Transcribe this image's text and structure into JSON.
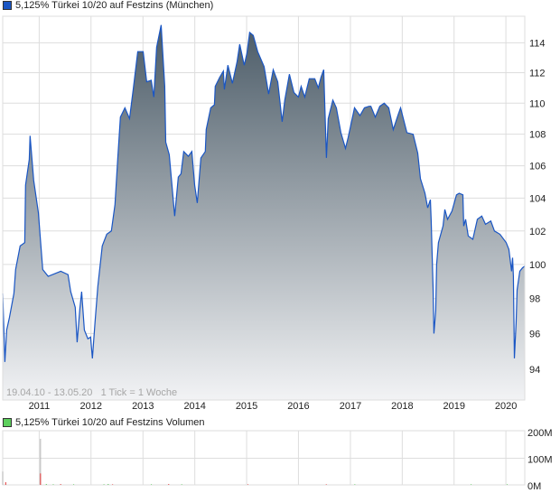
{
  "legend": {
    "price_label": "5,125% Türkei 10/20 auf Festzins (München)",
    "price_color": "#1a56c4",
    "volume_label": "5,125% Türkei 10/20 auf Festzins Volumen",
    "volume_color": "#5ccf5c"
  },
  "info_text": "19.04.10 - 13.05.20   1 Tick = 1 Woche",
  "chart_data": [
    {
      "type": "area",
      "name": "5,125% Türkei 10/20 auf Festzins (München)",
      "x_range": [
        "2010-04-19",
        "2020-05-13"
      ],
      "x_ticks": [
        "2011",
        "2012",
        "2013",
        "2014",
        "2015",
        "2016",
        "2017",
        "2018",
        "2019",
        "2020"
      ],
      "y_scale": "log",
      "ylim": [
        92.3,
        115.8
      ],
      "y_ticks": [
        94,
        96,
        98,
        100,
        102,
        104,
        106,
        108,
        110,
        112,
        114
      ],
      "grid": true,
      "legend": "top-left",
      "line_color": "#1a56c4",
      "fill_top": "#4b5b67",
      "fill_bottom": "#f2f3f5",
      "points": [
        [
          "2010-04-19",
          98.3
        ],
        [
          "2010-05-04",
          94.4
        ],
        [
          "2010-05-17",
          96.2
        ],
        [
          "2010-06-05",
          96.9
        ],
        [
          "2010-07-07",
          98.3
        ],
        [
          "2010-07-19",
          99.7
        ],
        [
          "2010-08-20",
          101.1
        ],
        [
          "2010-09-21",
          101.3
        ],
        [
          "2010-09-27",
          104.8
        ],
        [
          "2010-10-23",
          106.4
        ],
        [
          "2010-10-29",
          107.9
        ],
        [
          "2010-11-23",
          105.1
        ],
        [
          "2010-12-26",
          103.1
        ],
        [
          "2011-01-13",
          101.1
        ],
        [
          "2011-01-26",
          99.7
        ],
        [
          "2011-03-05",
          99.3
        ],
        [
          "2011-06-02",
          99.6
        ],
        [
          "2011-07-23",
          99.4
        ],
        [
          "2011-08-11",
          98.4
        ],
        [
          "2011-09-12",
          97.5
        ],
        [
          "2011-09-25",
          95.5
        ],
        [
          "2011-10-14",
          97.4
        ],
        [
          "2011-10-27",
          98.4
        ],
        [
          "2011-11-15",
          96.2
        ],
        [
          "2011-12-10",
          95.7
        ],
        [
          "2011-12-29",
          95.8
        ],
        [
          "2012-01-11",
          94.6
        ],
        [
          "2012-01-30",
          96.7
        ],
        [
          "2012-02-18",
          98.7
        ],
        [
          "2012-03-20",
          101.1
        ],
        [
          "2012-04-21",
          101.8
        ],
        [
          "2012-05-23",
          102.0
        ],
        [
          "2012-06-18",
          103.6
        ],
        [
          "2012-07-07",
          106.4
        ],
        [
          "2012-07-26",
          109.1
        ],
        [
          "2012-08-27",
          109.7
        ],
        [
          "2012-09-28",
          109.0
        ],
        [
          "2012-10-24",
          110.9
        ],
        [
          "2012-11-25",
          113.4
        ],
        [
          "2013-01-02",
          113.4
        ],
        [
          "2013-01-27",
          111.4
        ],
        [
          "2013-02-28",
          111.5
        ],
        [
          "2013-03-18",
          110.4
        ],
        [
          "2013-04-07",
          113.7
        ],
        [
          "2013-05-09",
          115.2
        ],
        [
          "2013-06-03",
          111.1
        ],
        [
          "2013-06-10",
          107.5
        ],
        [
          "2013-07-05",
          106.7
        ],
        [
          "2013-08-12",
          102.9
        ],
        [
          "2013-09-07",
          105.3
        ],
        [
          "2013-09-26",
          105.5
        ],
        [
          "2013-10-15",
          106.9
        ],
        [
          "2013-11-16",
          106.6
        ],
        [
          "2013-12-11",
          106.9
        ],
        [
          "2013-12-31",
          104.8
        ],
        [
          "2014-01-18",
          103.7
        ],
        [
          "2014-02-13",
          106.5
        ],
        [
          "2014-03-16",
          106.9
        ],
        [
          "2014-03-22",
          108.3
        ],
        [
          "2014-04-23",
          109.7
        ],
        [
          "2014-05-19",
          109.9
        ],
        [
          "2014-05-25",
          111.1
        ],
        [
          "2014-06-26",
          111.7
        ],
        [
          "2014-07-21",
          112.1
        ],
        [
          "2014-07-28",
          110.9
        ],
        [
          "2014-08-22",
          112.5
        ],
        [
          "2014-09-23",
          111.3
        ],
        [
          "2014-10-25",
          112.7
        ],
        [
          "2014-11-13",
          113.9
        ],
        [
          "2014-12-15",
          112.5
        ],
        [
          "2015-01-03",
          113.3
        ],
        [
          "2015-01-22",
          114.7
        ],
        [
          "2015-02-17",
          114.5
        ],
        [
          "2015-03-20",
          113.4
        ],
        [
          "2015-05-04",
          112.4
        ],
        [
          "2015-06-05",
          110.6
        ],
        [
          "2015-07-07",
          112.2
        ],
        [
          "2015-08-08",
          111.4
        ],
        [
          "2015-09-08",
          108.8
        ],
        [
          "2015-09-27",
          110.2
        ],
        [
          "2015-10-29",
          111.9
        ],
        [
          "2015-11-30",
          110.7
        ],
        [
          "2016-01-01",
          110.4
        ],
        [
          "2016-01-20",
          111.1
        ],
        [
          "2016-02-14",
          110.4
        ],
        [
          "2016-03-17",
          111.6
        ],
        [
          "2016-04-25",
          111.6
        ],
        [
          "2016-05-20",
          111.0
        ],
        [
          "2016-06-08",
          111.7
        ],
        [
          "2016-06-27",
          112.2
        ],
        [
          "2016-07-16",
          106.5
        ],
        [
          "2016-07-29",
          109.0
        ],
        [
          "2016-08-30",
          110.2
        ],
        [
          "2016-09-24",
          109.7
        ],
        [
          "2016-10-26",
          108.1
        ],
        [
          "2016-11-27",
          107.1
        ],
        [
          "2016-12-16",
          107.8
        ],
        [
          "2017-01-30",
          109.7
        ],
        [
          "2017-03-09",
          109.2
        ],
        [
          "2017-04-10",
          109.7
        ],
        [
          "2017-05-12",
          109.8
        ],
        [
          "2017-05-25",
          109.8
        ],
        [
          "2017-06-25",
          109.1
        ],
        [
          "2017-07-27",
          109.8
        ],
        [
          "2017-08-27",
          110.0
        ],
        [
          "2017-09-28",
          109.7
        ],
        [
          "2017-10-30",
          108.3
        ],
        [
          "2017-12-01",
          109.2
        ],
        [
          "2017-12-20",
          109.7
        ],
        [
          "2018-02-03",
          108.1
        ],
        [
          "2018-03-19",
          108.0
        ],
        [
          "2018-04-20",
          106.8
        ],
        [
          "2018-05-09",
          105.2
        ],
        [
          "2018-06-10",
          104.3
        ],
        [
          "2018-06-29",
          103.4
        ],
        [
          "2018-07-18",
          103.9
        ],
        [
          "2018-07-24",
          102.6
        ],
        [
          "2018-08-06",
          98.6
        ],
        [
          "2018-08-12",
          96.0
        ],
        [
          "2018-08-25",
          97.3
        ],
        [
          "2018-08-31",
          100.0
        ],
        [
          "2018-09-13",
          101.3
        ],
        [
          "2018-10-15",
          102.3
        ],
        [
          "2018-10-28",
          103.3
        ],
        [
          "2018-11-16",
          102.7
        ],
        [
          "2018-12-17",
          103.2
        ],
        [
          "2019-01-18",
          104.2
        ],
        [
          "2019-02-06",
          104.3
        ],
        [
          "2019-03-04",
          104.2
        ],
        [
          "2019-03-10",
          102.3
        ],
        [
          "2019-03-23",
          102.7
        ],
        [
          "2019-04-11",
          101.7
        ],
        [
          "2019-05-13",
          101.5
        ],
        [
          "2019-06-14",
          102.7
        ],
        [
          "2019-07-15",
          102.9
        ],
        [
          "2019-08-10",
          102.4
        ],
        [
          "2019-09-17",
          102.6
        ],
        [
          "2019-10-12",
          102.0
        ],
        [
          "2019-11-20",
          101.8
        ],
        [
          "2020-01-03",
          101.3
        ],
        [
          "2020-01-22",
          100.9
        ],
        [
          "2020-02-10",
          99.6
        ],
        [
          "2020-02-17",
          100.4
        ],
        [
          "2020-02-23",
          99.3
        ],
        [
          "2020-03-01",
          94.6
        ],
        [
          "2020-03-13",
          96.6
        ],
        [
          "2020-03-20",
          98.5
        ],
        [
          "2020-04-08",
          99.6
        ],
        [
          "2020-04-27",
          99.8
        ],
        [
          "2020-05-13",
          99.9
        ]
      ]
    },
    {
      "type": "bar",
      "name": "5,125% Türkei 10/20 auf Festzins Volumen",
      "ylim": [
        0,
        200
      ],
      "y_unit": "M",
      "y_ticks": [
        "0M",
        "100M",
        "200M"
      ],
      "grid": true,
      "colors": {
        "neutral": "#b0b0b0",
        "down": "#e03030",
        "up": "#40c040"
      },
      "bars": [
        [
          "2010-04-19",
          50,
          "neutral"
        ],
        [
          "2010-05-10",
          10,
          "down"
        ],
        [
          "2011-01-10",
          173,
          "neutral"
        ],
        [
          "2011-01-10",
          43,
          "down"
        ],
        [
          "2011-02-20",
          3,
          "up"
        ],
        [
          "2011-04-10",
          2,
          "up"
        ],
        [
          "2011-06-01",
          3,
          "down"
        ],
        [
          "2011-09-01",
          2,
          "up"
        ],
        [
          "2012-04-01",
          2,
          "up"
        ],
        [
          "2012-05-01",
          3,
          "up"
        ],
        [
          "2012-06-01",
          2,
          "down"
        ],
        [
          "2013-03-01",
          2,
          "up"
        ],
        [
          "2013-07-01",
          3,
          "down"
        ],
        [
          "2013-10-01",
          2,
          "up"
        ],
        [
          "2015-01-10",
          2,
          "down"
        ],
        [
          "2016-07-15",
          2,
          "down"
        ],
        [
          "2017-02-01",
          2,
          "up"
        ],
        [
          "2019-05-01",
          2,
          "up"
        ],
        [
          "2020-01-10",
          2,
          "up"
        ]
      ]
    }
  ]
}
